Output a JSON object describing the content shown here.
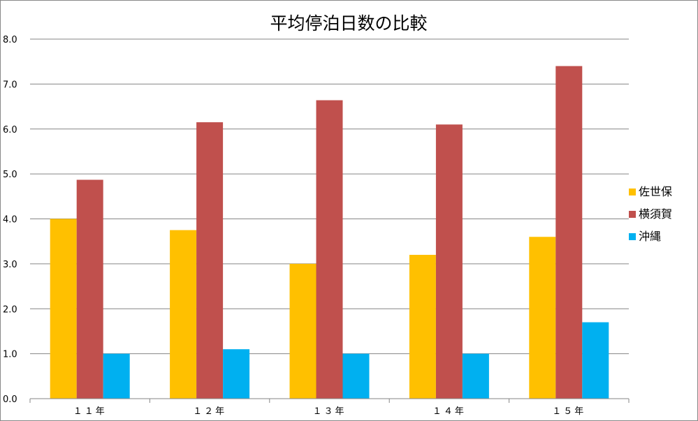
{
  "chart_data": {
    "type": "bar",
    "title": "平均停泊日数の比較",
    "xlabel": "",
    "ylabel": "",
    "categories": [
      "１１年",
      "１２年",
      "１３年",
      "１４年",
      "１５年"
    ],
    "series": [
      {
        "name": "佐世保",
        "color": "#FFC000",
        "values": [
          4.0,
          3.75,
          3.0,
          3.2,
          3.6
        ]
      },
      {
        "name": "横須賀",
        "color": "#C0504D",
        "values": [
          4.87,
          6.15,
          6.64,
          6.1,
          7.4
        ]
      },
      {
        "name": "沖縄",
        "color": "#00B0F0",
        "values": [
          1.0,
          1.1,
          1.0,
          1.0,
          1.7
        ]
      }
    ],
    "ylim": [
      0,
      8
    ],
    "yticks": [
      "0.0",
      "1.0",
      "2.0",
      "3.0",
      "4.0",
      "5.0",
      "6.0",
      "7.0",
      "8.0"
    ],
    "grid": true,
    "legend": "right"
  }
}
